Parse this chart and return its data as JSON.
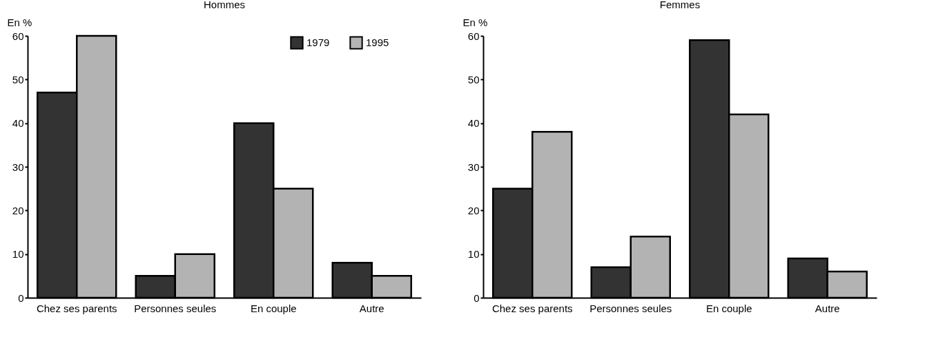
{
  "chart_data": [
    {
      "type": "bar",
      "title": "Hommes",
      "ylabel": "En %",
      "categories": [
        "Chez ses parents",
        "Personnes seules",
        "En couple",
        "Autre"
      ],
      "series": [
        {
          "name": "1979",
          "color": "#333333",
          "values": [
            47,
            5,
            40,
            8
          ]
        },
        {
          "name": "1995",
          "color": "#b3b3b3",
          "values": [
            60,
            10,
            25,
            5
          ]
        }
      ],
      "ylim": [
        0,
        60
      ],
      "yticks": [
        0,
        10,
        20,
        30,
        40,
        50,
        60
      ],
      "legend": "top right"
    },
    {
      "type": "bar",
      "title": "Femmes",
      "ylabel": "En %",
      "categories": [
        "Chez ses parents",
        "Personnes seules",
        "En couple",
        "Autre"
      ],
      "series": [
        {
          "name": "1979",
          "color": "#333333",
          "values": [
            25,
            7,
            59,
            9
          ]
        },
        {
          "name": "1995",
          "color": "#b3b3b3",
          "values": [
            38,
            14,
            42,
            6
          ]
        }
      ],
      "ylim": [
        0,
        60
      ],
      "yticks": [
        0,
        10,
        20,
        30,
        40,
        50,
        60
      ]
    }
  ]
}
